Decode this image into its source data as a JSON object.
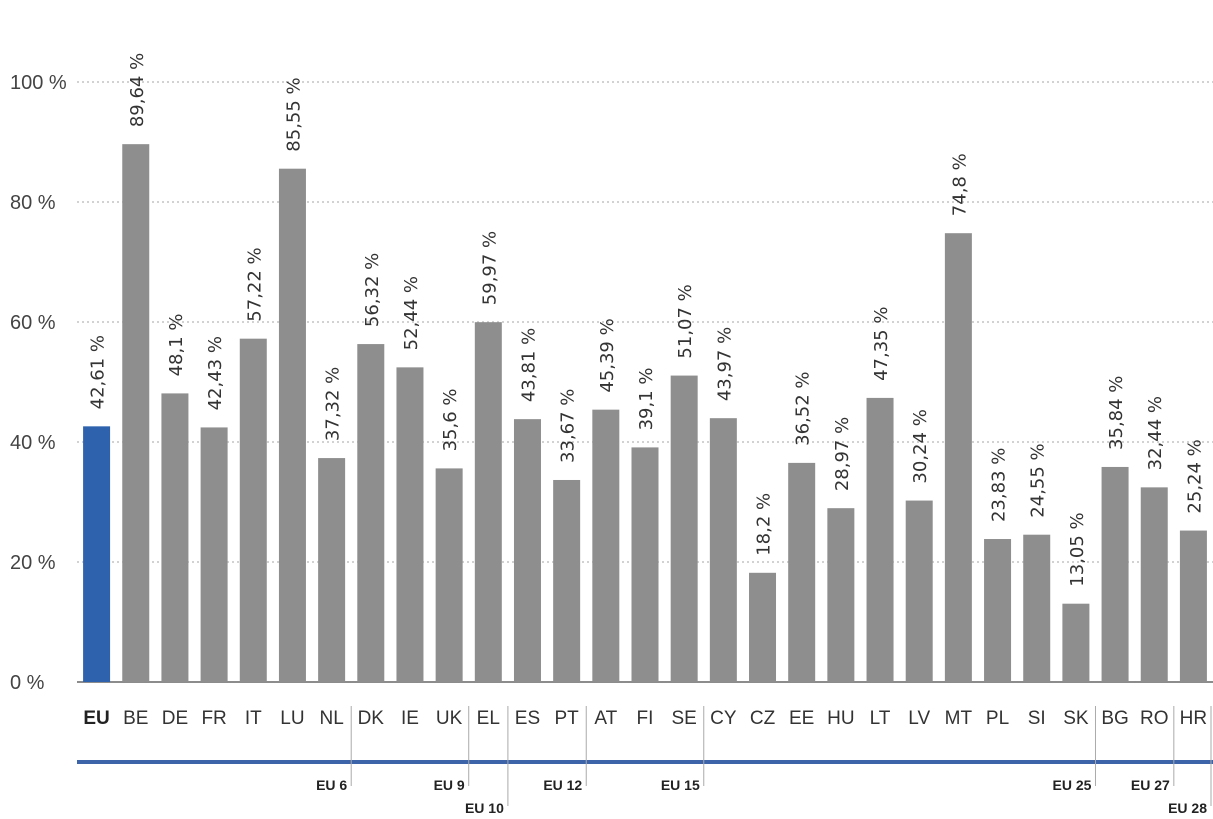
{
  "chart_data": {
    "type": "bar",
    "categories": [
      "EU",
      "BE",
      "DE",
      "FR",
      "IT",
      "LU",
      "NL",
      "DK",
      "IE",
      "UK",
      "EL",
      "ES",
      "PT",
      "AT",
      "FI",
      "SE",
      "CY",
      "CZ",
      "EE",
      "HU",
      "LT",
      "LV",
      "MT",
      "PL",
      "SI",
      "SK",
      "BG",
      "RO",
      "HR"
    ],
    "values": [
      42.61,
      89.64,
      48.1,
      42.43,
      57.22,
      85.55,
      37.32,
      56.32,
      52.44,
      35.6,
      59.97,
      43.81,
      33.67,
      45.39,
      39.1,
      51.07,
      43.97,
      18.2,
      36.52,
      28.97,
      47.35,
      30.24,
      74.8,
      23.83,
      24.55,
      13.05,
      35.84,
      32.44,
      25.24
    ],
    "value_labels": [
      "42,61 %",
      "89,64 %",
      "48,1 %",
      "42,43 %",
      "57,22 %",
      "85,55 %",
      "37,32 %",
      "56,32 %",
      "52,44 %",
      "35,6 %",
      "59,97 %",
      "43,81 %",
      "33,67 %",
      "45,39 %",
      "39,1 %",
      "51,07 %",
      "43,97 %",
      "18,2 %",
      "36,52 %",
      "28,97 %",
      "47,35 %",
      "30,24 %",
      "74,8 %",
      "23,83 %",
      "24,55 %",
      "13,05 %",
      "35,84 %",
      "32,44 %",
      "25,24 %"
    ],
    "ylim": [
      0,
      100
    ],
    "yticks": [
      0,
      20,
      40,
      60,
      80,
      100
    ],
    "ytick_labels": [
      "0 %",
      "20 %",
      "40 %",
      "60 %",
      "80 %",
      "100 %"
    ],
    "grid": true,
    "colors": {
      "highlight": "#2e62ad",
      "bar": "#8e8e8e",
      "baseline": "#3d64a8",
      "grid": "#b8b8b8",
      "divider": "#aaaaaa"
    },
    "highlight_category": "EU",
    "enlargement_groups": [
      {
        "label": "EU 6",
        "after_category": "NL",
        "row": 1
      },
      {
        "label": "EU 9",
        "after_category": "UK",
        "row": 1
      },
      {
        "label": "EU 10",
        "after_category": "EL",
        "row": 2
      },
      {
        "label": "EU 12",
        "after_category": "PT",
        "row": 1
      },
      {
        "label": "EU 15",
        "after_category": "SE",
        "row": 1
      },
      {
        "label": "EU 25",
        "after_category": "SK",
        "row": 1
      },
      {
        "label": "EU 27",
        "after_category": "RO",
        "row": 1
      },
      {
        "label": "EU 28",
        "after_category": "HR",
        "row": 2
      }
    ]
  }
}
